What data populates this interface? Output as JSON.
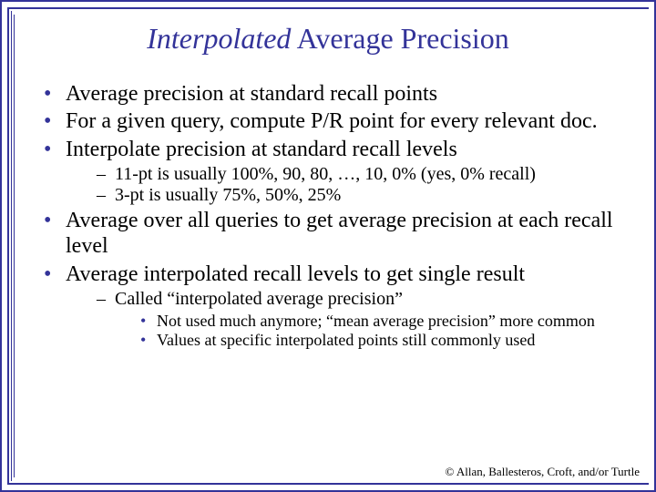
{
  "title": {
    "italic": "Interpolated",
    "rest": " Average Precision"
  },
  "bullets": {
    "b1": "Average precision at standard recall points",
    "b2": "For a given query, compute P/R point for every relevant doc.",
    "b3": "Interpolate precision at standard recall levels",
    "b3_sub": {
      "s1": "11-pt is usually 100%, 90, 80, …, 10, 0% (yes, 0% recall)",
      "s2": "3-pt is usually 75%, 50%, 25%"
    },
    "b4": "Average over all queries to get average precision at each recall level",
    "b5": "Average interpolated recall levels to get single result",
    "b5_sub": {
      "s1": "Called “interpolated average precision”",
      "s1_sub": {
        "t1": "Not used much anymore; “mean average precision” more common",
        "t2": "Values at specific interpolated points still commonly used"
      }
    }
  },
  "footer": "© Allan, Ballesteros, Croft, and/or Turtle",
  "colors": {
    "accent": "#333399",
    "text": "#000000",
    "background": "#ffffff"
  }
}
